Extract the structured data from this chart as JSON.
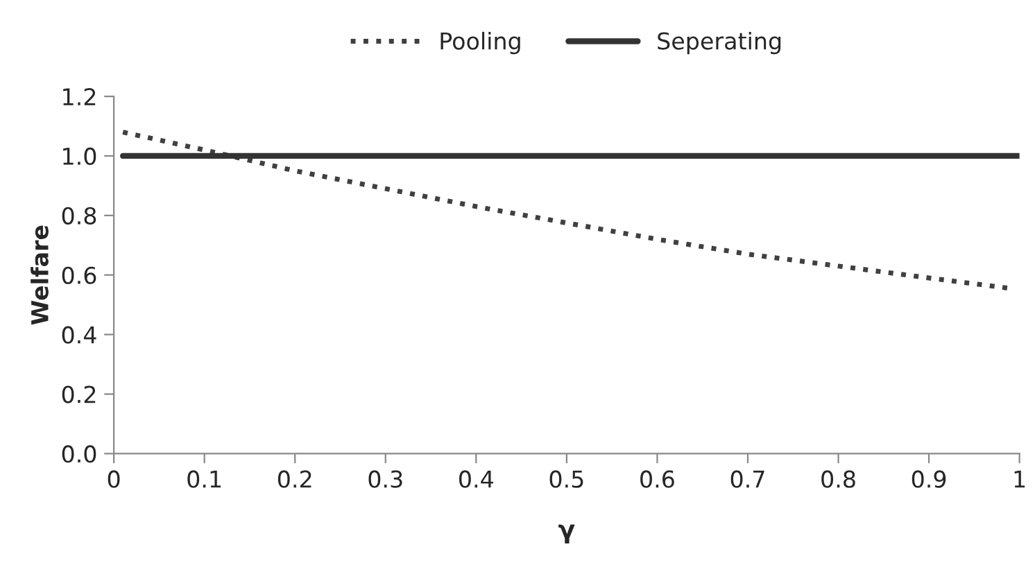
{
  "chart_data": {
    "type": "line",
    "xlabel": "γ",
    "ylabel": "Welfare",
    "xlim": [
      0,
      1
    ],
    "ylim": [
      0,
      1.2
    ],
    "xticks": [
      0,
      0.1,
      0.2,
      0.3,
      0.4,
      0.5,
      0.6,
      0.7,
      0.8,
      0.9,
      1
    ],
    "yticks": [
      {
        "value": 0,
        "label": "0.0"
      },
      {
        "value": 0.2,
        "label": "0.2"
      },
      {
        "value": 0.4,
        "label": "0.4"
      },
      {
        "value": 0.6,
        "label": "0.6"
      },
      {
        "value": 0.8,
        "label": "0.8"
      },
      {
        "value": 1.0,
        "label": "1.0"
      },
      {
        "value": 1.2,
        "label": "1.2"
      }
    ],
    "grid": false,
    "legend": "top",
    "marker": "none",
    "series": [
      {
        "name": "Pooling",
        "color": "#404040",
        "line_style": "dotted",
        "x": [
          0.01,
          0.1,
          0.2,
          0.3,
          0.4,
          0.5,
          0.6,
          0.7,
          0.8,
          0.9,
          0.99
        ],
        "values": [
          1.08,
          1.02,
          0.95,
          0.89,
          0.83,
          0.775,
          0.72,
          0.67,
          0.63,
          0.59,
          0.555
        ]
      },
      {
        "name": "Seperating",
        "color": "#333333",
        "line_style": "solid",
        "x": [
          0.01,
          1.0
        ],
        "values": [
          1.0,
          1.0
        ]
      }
    ]
  }
}
